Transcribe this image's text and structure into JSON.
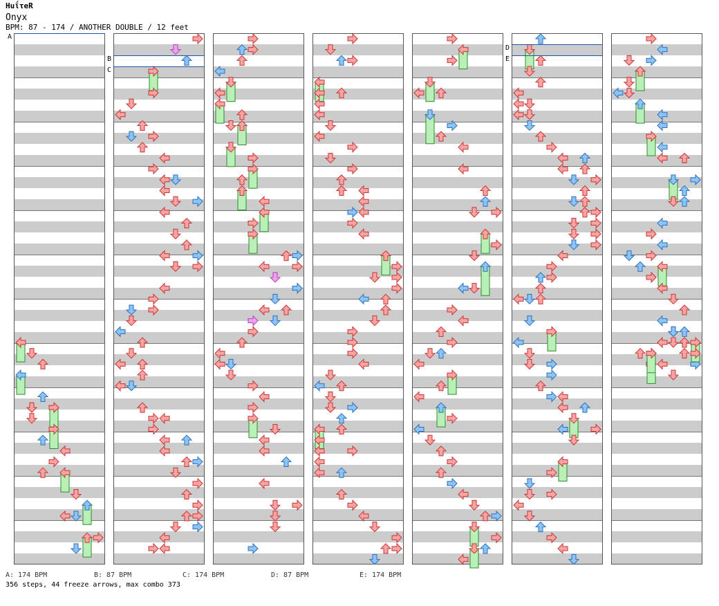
{
  "header": {
    "title": "HuΐτeR",
    "song": "Onyx",
    "meta": "BPM: 87 - 174 / ANOTHER DOUBLE / 12 feet"
  },
  "colors": {
    "red_note": "#f6a4a4",
    "blue_note": "#8ec4f4",
    "pink_note": "#f0a0f0",
    "freeze": "#b8f0b8",
    "note_stroke": "#cc3333",
    "blue_stroke": "#2a6fc0",
    "bpm_line": "#1a56a8"
  },
  "bpm_markers": [
    "A",
    "B",
    "C",
    "D",
    "E"
  ],
  "legend": [
    {
      "label": "A: 174 BPM"
    },
    {
      "label": "B: 87 BPM"
    },
    {
      "label": "C: 174 BPM"
    },
    {
      "label": "D: 87 BPM"
    },
    {
      "label": "E: 174 BPM"
    }
  ],
  "stats": "356 steps, 44 freeze arrows, max combo 373"
}
